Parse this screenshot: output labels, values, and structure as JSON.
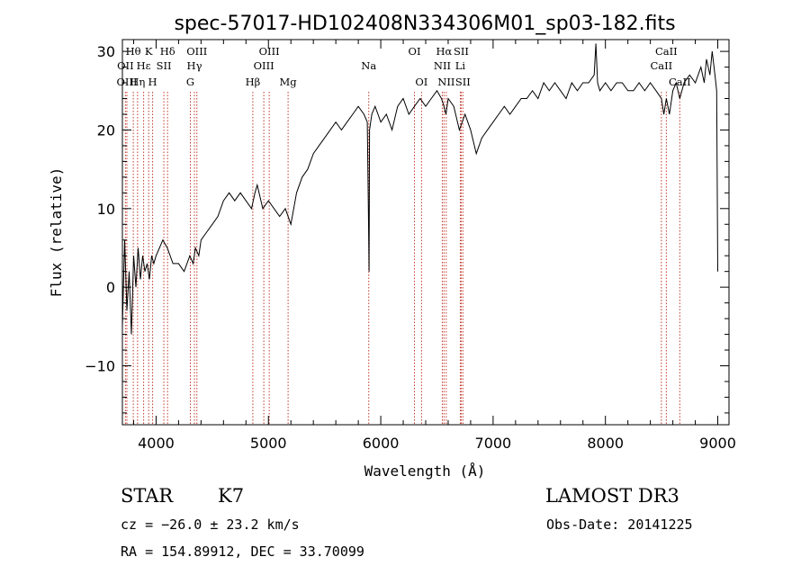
{
  "chart_data": {
    "type": "line",
    "title": "spec-57017-HD102408N334306M01_sp03-182.fits",
    "xlabel": "Wavelength (Å)",
    "ylabel": "Flux (relative)",
    "xlim": [
      3700,
      9100
    ],
    "ylim": [
      -17.5,
      31.5
    ],
    "xticks": [
      4000,
      5000,
      6000,
      7000,
      8000,
      9000
    ],
    "yticks": [
      -10,
      0,
      10,
      20,
      30
    ],
    "grid": false,
    "series": [
      {
        "x": [
          3700,
          3720,
          3740,
          3760,
          3780,
          3800,
          3820,
          3840,
          3860,
          3880,
          3900,
          3920,
          3940,
          3960,
          3980,
          4000,
          4030,
          4060,
          4100,
          4150,
          4200,
          4250,
          4300,
          4330,
          4350,
          4380,
          4400,
          4450,
          4500,
          4550,
          4600,
          4650,
          4700,
          4750,
          4800,
          4850,
          4880,
          4900,
          4950,
          5000,
          5050,
          5100,
          5150,
          5200,
          5250,
          5300,
          5350,
          5400,
          5450,
          5500,
          5550,
          5600,
          5650,
          5700,
          5750,
          5800,
          5850,
          5880,
          5890,
          5896,
          5900,
          5920,
          5950,
          6000,
          6050,
          6100,
          6150,
          6200,
          6250,
          6300,
          6350,
          6400,
          6450,
          6500,
          6540,
          6563,
          6580,
          6600,
          6650,
          6700,
          6750,
          6800,
          6850,
          6900,
          6950,
          7000,
          7050,
          7100,
          7150,
          7200,
          7250,
          7300,
          7350,
          7400,
          7450,
          7500,
          7550,
          7600,
          7650,
          7700,
          7750,
          7800,
          7850,
          7900,
          7915,
          7930,
          7950,
          8000,
          8050,
          8100,
          8150,
          8200,
          8250,
          8300,
          8350,
          8400,
          8450,
          8498,
          8520,
          8542,
          8570,
          8600,
          8630,
          8662,
          8700,
          8750,
          8800,
          8850,
          8880,
          8900,
          8930,
          8950,
          8975,
          8990,
          9000
        ],
        "y": [
          -5,
          6,
          -3,
          2,
          -6,
          4,
          0,
          5,
          1,
          4,
          2,
          3,
          1,
          4,
          3,
          4,
          5,
          6,
          5,
          3,
          3,
          2,
          4,
          3,
          5,
          4,
          6,
          7,
          8,
          9,
          11,
          12,
          11,
          12,
          11,
          10,
          12,
          13,
          10,
          11,
          10,
          9,
          10,
          8,
          12,
          14,
          15,
          17,
          18,
          19,
          20,
          21,
          20,
          21,
          22,
          23,
          22,
          21,
          10,
          2,
          20,
          22,
          23,
          21,
          22,
          20,
          23,
          24,
          22,
          23,
          24,
          23,
          24,
          25,
          24,
          23,
          22,
          24,
          23,
          20,
          22,
          20,
          17,
          19,
          20,
          21,
          22,
          23,
          22,
          23,
          24,
          24,
          25,
          24,
          26,
          25,
          26,
          25,
          24,
          26,
          25,
          26,
          26,
          27,
          31,
          26,
          25,
          26,
          25,
          26,
          26,
          25,
          25,
          26,
          25,
          26,
          25,
          24,
          22,
          24,
          22,
          25,
          26,
          24,
          26,
          27,
          26,
          28,
          26,
          29,
          27,
          30,
          27,
          25,
          2
        ]
      }
    ],
    "emission_lines": [
      {
        "label": "Hθ",
        "wave": 3797,
        "row": 0
      },
      {
        "label": "OII",
        "wave": 3727,
        "row": 1
      },
      {
        "label": "OIII",
        "wave": 3740,
        "row": 2
      },
      {
        "label": "K",
        "wave": 3934,
        "row": 0
      },
      {
        "label": "Hε",
        "wave": 3889,
        "row": 1
      },
      {
        "label": "Hη",
        "wave": 3835,
        "row": 2
      },
      {
        "label": "Hδ",
        "wave": 4102,
        "row": 0
      },
      {
        "label": "SII",
        "wave": 4069,
        "row": 1
      },
      {
        "label": "H",
        "wave": 3969,
        "row": 2
      },
      {
        "label": "OIII",
        "wave": 4363,
        "row": 0
      },
      {
        "label": "Hγ",
        "wave": 4341,
        "row": 1
      },
      {
        "label": "G",
        "wave": 4305,
        "row": 2
      },
      {
        "label": "Hβ",
        "wave": 4861,
        "row": 2
      },
      {
        "label": "OIII",
        "wave": 5007,
        "row": 0
      },
      {
        "label": "OIII",
        "wave": 4959,
        "row": 1
      },
      {
        "label": "Mg",
        "wave": 5175,
        "row": 2
      },
      {
        "label": "Na",
        "wave": 5893,
        "row": 1
      },
      {
        "label": "OI",
        "wave": 6300,
        "row": 0
      },
      {
        "label": "OI",
        "wave": 6363,
        "row": 2
      },
      {
        "label": "Hα",
        "wave": 6563,
        "row": 0
      },
      {
        "label": "NII",
        "wave": 6548,
        "row": 1
      },
      {
        "label": "NII",
        "wave": 6583,
        "row": 2
      },
      {
        "label": "SII",
        "wave": 6716,
        "row": 0
      },
      {
        "label": "Li",
        "wave": 6708,
        "row": 1
      },
      {
        "label": "SII",
        "wave": 6731,
        "row": 2
      },
      {
        "label": "CaII",
        "wave": 8542,
        "row": 0
      },
      {
        "label": "CaII",
        "wave": 8498,
        "row": 1
      },
      {
        "label": "CaII",
        "wave": 8662,
        "row": 2
      }
    ]
  },
  "info": {
    "class": "STAR",
    "subclass": "K7",
    "survey": "LAMOST DR3",
    "cz": "cz = −26.0 ± 23.2 km/s",
    "obs_date": "Obs-Date: 20141225",
    "coords": "RA = 154.89912, DEC =  33.70099"
  }
}
